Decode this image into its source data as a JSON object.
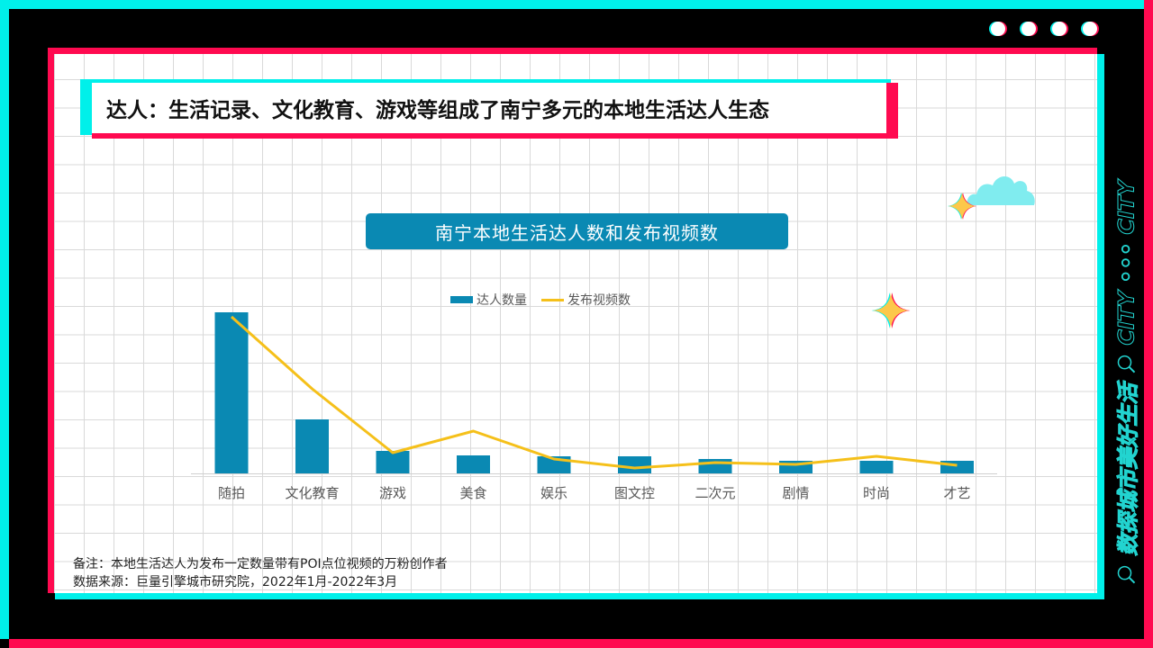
{
  "header": {
    "title": "达人：生活记录、文化教育、游戏等组成了南宁多元的本地生活达人生态"
  },
  "side_banner": {
    "text_cn": "数探城市美好生活",
    "text_en": "CITY ◦◦◦ CITY",
    "icons": [
      "search-icon",
      "search-icon"
    ]
  },
  "window_dots": 4,
  "chart": {
    "title": "南宁本地生活达人数和发布视频数",
    "legend": [
      "达人数量",
      "发布视频数"
    ]
  },
  "notes": {
    "line1": "备注：本地生活达人为发布一定数量带有POI点位视频的万粉创作者",
    "line2": "数据来源：巨量引擎城市研究院，2022年1月-2022年3月"
  },
  "colors": {
    "cyan": "#00f0ea",
    "pink": "#ff0a50",
    "bar": "#0a89b3",
    "line": "#f5c01a"
  },
  "chart_data": {
    "type": "bar",
    "title": "南宁本地生活达人数和发布视频数",
    "xlabel": "",
    "ylabel": "",
    "note": "No y-axis tick labels shown; values are relative (estimated from pixel heights, arbitrary units)",
    "categories": [
      "随拍",
      "文化教育",
      "游戏",
      "美食",
      "娱乐",
      "图文控",
      "二次元",
      "剧情",
      "时尚",
      "才艺"
    ],
    "series": [
      {
        "name": "达人数量",
        "type": "bar",
        "values": [
          179,
          60,
          25,
          20,
          19,
          19,
          16,
          14,
          14,
          14
        ]
      },
      {
        "name": "发布视频数",
        "type": "line",
        "values": [
          174,
          94,
          23,
          47,
          16,
          6,
          12,
          10,
          19,
          9
        ]
      }
    ],
    "legend_position": "top",
    "grid": false,
    "ylim": [
      0,
      180
    ]
  }
}
